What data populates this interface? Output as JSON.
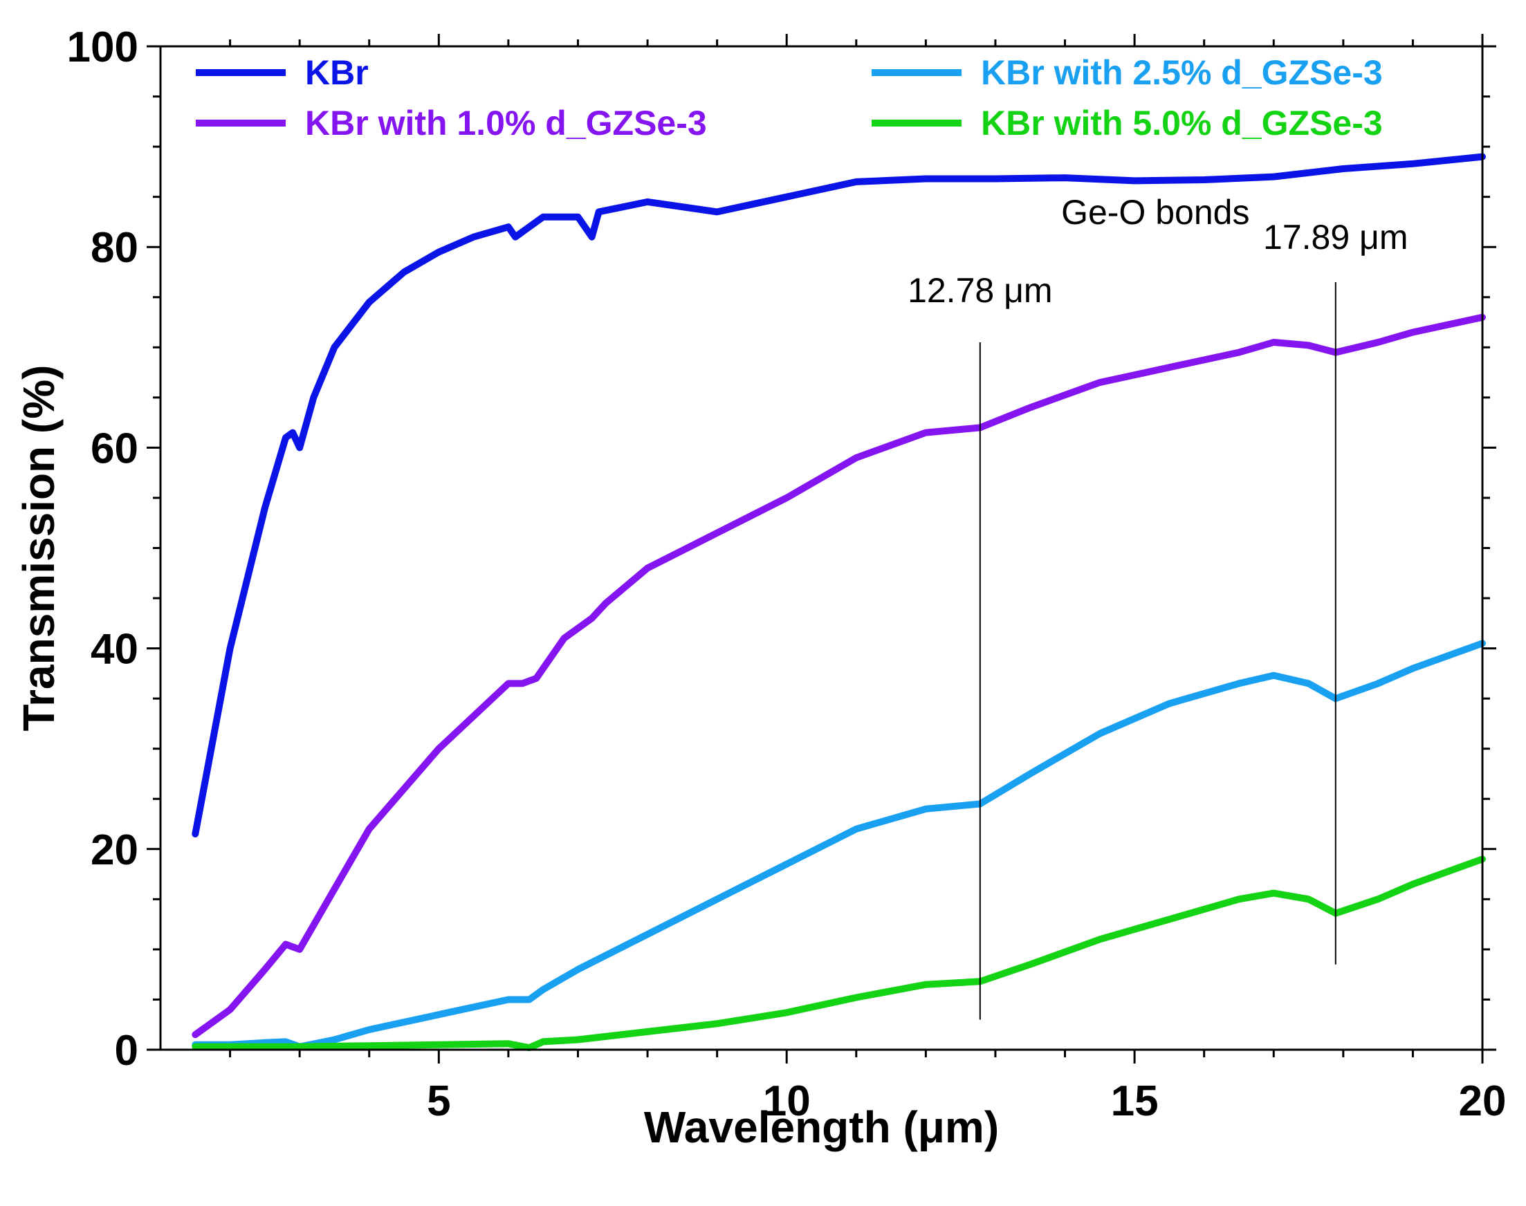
{
  "chart_data": {
    "type": "line",
    "xlabel": "Wavelength (μm)",
    "ylabel": "Transmission (%)",
    "xlim": [
      1.0,
      20.0
    ],
    "ylim": [
      0,
      100
    ],
    "xticks": [
      5,
      10,
      15,
      20
    ],
    "xtick_labels": [
      "5",
      "10",
      "15",
      "20"
    ],
    "yticks": [
      0,
      20,
      40,
      60,
      80,
      100
    ],
    "ytick_labels": [
      "0",
      "20",
      "40",
      "60",
      "80",
      "100"
    ],
    "grid": false,
    "legend_placement": "top",
    "series": [
      {
        "name": "KBr",
        "color": "#0a14e6",
        "x": [
          1.5,
          2.0,
          2.5,
          2.8,
          2.9,
          3.0,
          3.2,
          3.5,
          4.0,
          4.5,
          5.0,
          5.5,
          6.0,
          6.1,
          6.2,
          6.5,
          7.0,
          7.2,
          7.3,
          8.0,
          9.0,
          10.0,
          11.0,
          12.0,
          13.0,
          14.0,
          15.0,
          16.0,
          17.0,
          18.0,
          19.0,
          20.0
        ],
        "y": [
          21.5,
          40.0,
          54.0,
          61.0,
          61.5,
          60.0,
          65.0,
          70.0,
          74.5,
          77.5,
          79.5,
          81.0,
          82.0,
          81.0,
          81.5,
          83.0,
          83.0,
          81.0,
          83.5,
          84.5,
          83.5,
          85.0,
          86.5,
          86.8,
          86.8,
          86.9,
          86.6,
          86.7,
          87.0,
          87.8,
          88.3,
          89.0
        ]
      },
      {
        "name": "KBr with 1.0% d_GZSe-3",
        "color": "#8414f0",
        "x": [
          1.5,
          2.0,
          2.5,
          2.8,
          3.0,
          3.5,
          4.0,
          5.0,
          6.0,
          6.2,
          6.4,
          6.8,
          7.2,
          7.4,
          8.0,
          9.0,
          10.0,
          11.0,
          12.0,
          12.78,
          13.5,
          14.5,
          15.5,
          16.5,
          17.0,
          17.5,
          17.89,
          18.5,
          19.0,
          20.0
        ],
        "y": [
          1.5,
          4.0,
          8.0,
          10.5,
          10.0,
          16.0,
          22.0,
          30.0,
          36.5,
          36.5,
          37.0,
          41.0,
          43.0,
          44.5,
          48.0,
          51.5,
          55.0,
          59.0,
          61.5,
          62.0,
          64.0,
          66.5,
          68.0,
          69.5,
          70.5,
          70.2,
          69.5,
          70.5,
          71.5,
          73.0
        ]
      },
      {
        "name": "KBr with 2.5% d_GZSe-3",
        "color": "#19a0f0",
        "x": [
          1.5,
          2.0,
          2.5,
          2.8,
          3.0,
          3.5,
          4.0,
          5.0,
          6.0,
          6.3,
          6.5,
          7.0,
          8.0,
          9.0,
          10.0,
          11.0,
          12.0,
          12.78,
          13.5,
          14.5,
          15.5,
          16.5,
          17.0,
          17.5,
          17.89,
          18.5,
          19.0,
          20.0
        ],
        "y": [
          0.5,
          0.5,
          0.7,
          0.8,
          0.3,
          1.0,
          2.0,
          3.5,
          5.0,
          5.0,
          6.0,
          8.0,
          11.5,
          15.0,
          18.5,
          22.0,
          24.0,
          24.5,
          27.5,
          31.5,
          34.5,
          36.5,
          37.3,
          36.5,
          35.0,
          36.5,
          38.0,
          40.5
        ]
      },
      {
        "name": "KBr with 5.0% d_GZSe-3",
        "color": "#14d214",
        "x": [
          1.5,
          2.0,
          3.0,
          4.0,
          5.0,
          6.0,
          6.3,
          6.5,
          7.0,
          8.0,
          9.0,
          10.0,
          11.0,
          12.0,
          12.78,
          13.5,
          14.5,
          15.5,
          16.5,
          17.0,
          17.5,
          17.89,
          18.5,
          19.0,
          20.0
        ],
        "y": [
          0.3,
          0.3,
          0.3,
          0.4,
          0.5,
          0.6,
          0.2,
          0.8,
          1.0,
          1.8,
          2.6,
          3.7,
          5.2,
          6.5,
          6.8,
          8.5,
          11.0,
          13.0,
          15.0,
          15.6,
          15.0,
          13.6,
          15.0,
          16.5,
          19.0
        ]
      }
    ],
    "annotations": {
      "group_label": "Ge-O bonds",
      "markers": [
        {
          "label": "12.78 μm",
          "x": 12.78
        },
        {
          "label": "17.89 μm",
          "x": 17.89
        }
      ]
    }
  }
}
